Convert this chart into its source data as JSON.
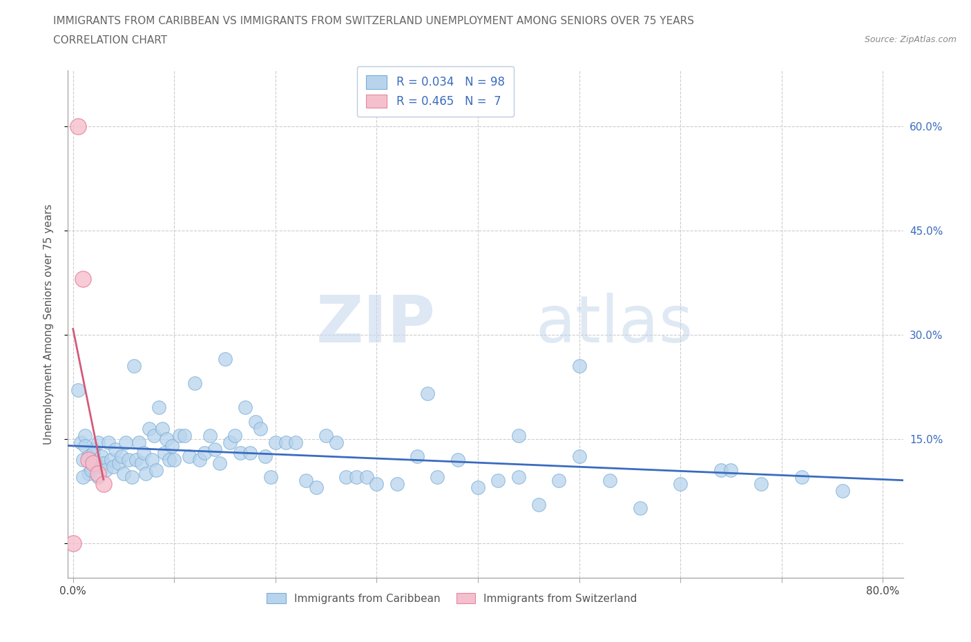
{
  "title_line1": "IMMIGRANTS FROM CARIBBEAN VS IMMIGRANTS FROM SWITZERLAND UNEMPLOYMENT AMONG SENIORS OVER 75 YEARS",
  "title_line2": "CORRELATION CHART",
  "source": "Source: ZipAtlas.com",
  "ylabel": "Unemployment Among Seniors over 75 years",
  "xlim": [
    -0.005,
    0.82
  ],
  "ylim": [
    -0.05,
    0.68
  ],
  "xticks": [
    0.0,
    0.1,
    0.2,
    0.3,
    0.4,
    0.5,
    0.6,
    0.7,
    0.8
  ],
  "yticks": [
    0.0,
    0.15,
    0.3,
    0.45,
    0.6
  ],
  "grid_color": "#cccccc",
  "watermark_zip": "ZIP",
  "watermark_atlas": "atlas",
  "caribbean_color": "#b8d4ed",
  "caribbean_edge": "#7aadd4",
  "switzerland_color": "#f5c0ce",
  "switzerland_edge": "#e8849e",
  "trend_caribbean_color": "#3a6bbf",
  "trend_switzerland_color": "#d45a7a",
  "legend_r_caribbean": "R = 0.034",
  "legend_n_caribbean": "N = 98",
  "legend_r_switzerland": "R = 0.465",
  "legend_n_switzerland": "N =  7",
  "caribbean_x": [
    0.005,
    0.008,
    0.01,
    0.012,
    0.015,
    0.018,
    0.02,
    0.022,
    0.025,
    0.028,
    0.01,
    0.012,
    0.015,
    0.018,
    0.02,
    0.022,
    0.025,
    0.028,
    0.03,
    0.032,
    0.035,
    0.038,
    0.04,
    0.042,
    0.045,
    0.048,
    0.05,
    0.052,
    0.055,
    0.058,
    0.06,
    0.062,
    0.065,
    0.068,
    0.07,
    0.072,
    0.075,
    0.078,
    0.08,
    0.082,
    0.085,
    0.088,
    0.09,
    0.092,
    0.095,
    0.098,
    0.1,
    0.105,
    0.11,
    0.115,
    0.12,
    0.125,
    0.13,
    0.135,
    0.14,
    0.145,
    0.15,
    0.155,
    0.16,
    0.165,
    0.17,
    0.175,
    0.18,
    0.185,
    0.19,
    0.195,
    0.2,
    0.21,
    0.22,
    0.23,
    0.24,
    0.25,
    0.26,
    0.27,
    0.28,
    0.29,
    0.3,
    0.32,
    0.34,
    0.36,
    0.38,
    0.4,
    0.42,
    0.44,
    0.46,
    0.48,
    0.5,
    0.53,
    0.56,
    0.6,
    0.64,
    0.68,
    0.72,
    0.76,
    0.5,
    0.44,
    0.35,
    0.65
  ],
  "caribbean_y": [
    0.22,
    0.145,
    0.12,
    0.155,
    0.1,
    0.12,
    0.135,
    0.11,
    0.145,
    0.115,
    0.095,
    0.14,
    0.125,
    0.105,
    0.13,
    0.115,
    0.095,
    0.125,
    0.115,
    0.105,
    0.145,
    0.12,
    0.11,
    0.135,
    0.115,
    0.125,
    0.1,
    0.145,
    0.12,
    0.095,
    0.255,
    0.12,
    0.145,
    0.115,
    0.13,
    0.1,
    0.165,
    0.12,
    0.155,
    0.105,
    0.195,
    0.165,
    0.13,
    0.15,
    0.12,
    0.14,
    0.12,
    0.155,
    0.155,
    0.125,
    0.23,
    0.12,
    0.13,
    0.155,
    0.135,
    0.115,
    0.265,
    0.145,
    0.155,
    0.13,
    0.195,
    0.13,
    0.175,
    0.165,
    0.125,
    0.095,
    0.145,
    0.145,
    0.145,
    0.09,
    0.08,
    0.155,
    0.145,
    0.095,
    0.095,
    0.095,
    0.085,
    0.085,
    0.125,
    0.095,
    0.12,
    0.08,
    0.09,
    0.095,
    0.055,
    0.09,
    0.125,
    0.09,
    0.05,
    0.085,
    0.105,
    0.085,
    0.095,
    0.075,
    0.255,
    0.155,
    0.215,
    0.105
  ],
  "switzerland_x": [
    0.005,
    0.01,
    0.015,
    0.02,
    0.025,
    0.03,
    0.0
  ],
  "switzerland_y": [
    0.6,
    0.38,
    0.12,
    0.115,
    0.1,
    0.085,
    0.0
  ]
}
